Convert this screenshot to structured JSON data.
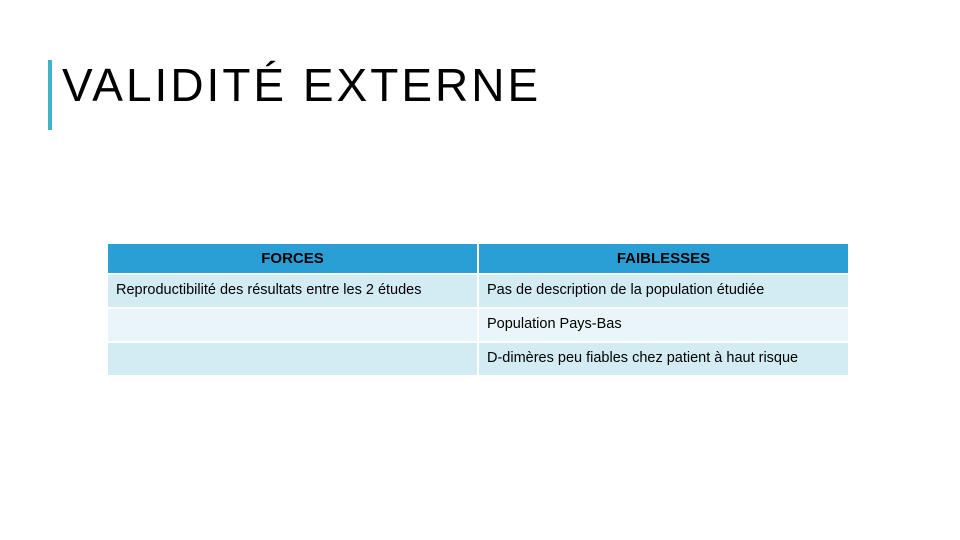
{
  "slide": {
    "title": "VALIDITÉ EXTERNE",
    "accent_color": "#3fb4c8",
    "title_fontsize": 46,
    "title_letter_spacing": 3
  },
  "table": {
    "type": "table",
    "header_bg": "#2a9fd6",
    "row_bg_primary": "#d3ecf3",
    "row_bg_alt": "#eaf5f9",
    "border_color": "#ffffff",
    "columns": [
      "FORCES",
      "FAIBLESSES"
    ],
    "rows": [
      {
        "forces": "Reproductibilité des résultats entre les 2 études",
        "faiblesses": "Pas de description de la population étudiée",
        "alt": false
      },
      {
        "forces": "",
        "faiblesses": "Population Pays-Bas",
        "alt": true
      },
      {
        "forces": "",
        "faiblesses": "D-dimères peu fiables chez patient à haut risque",
        "alt": false
      }
    ]
  }
}
